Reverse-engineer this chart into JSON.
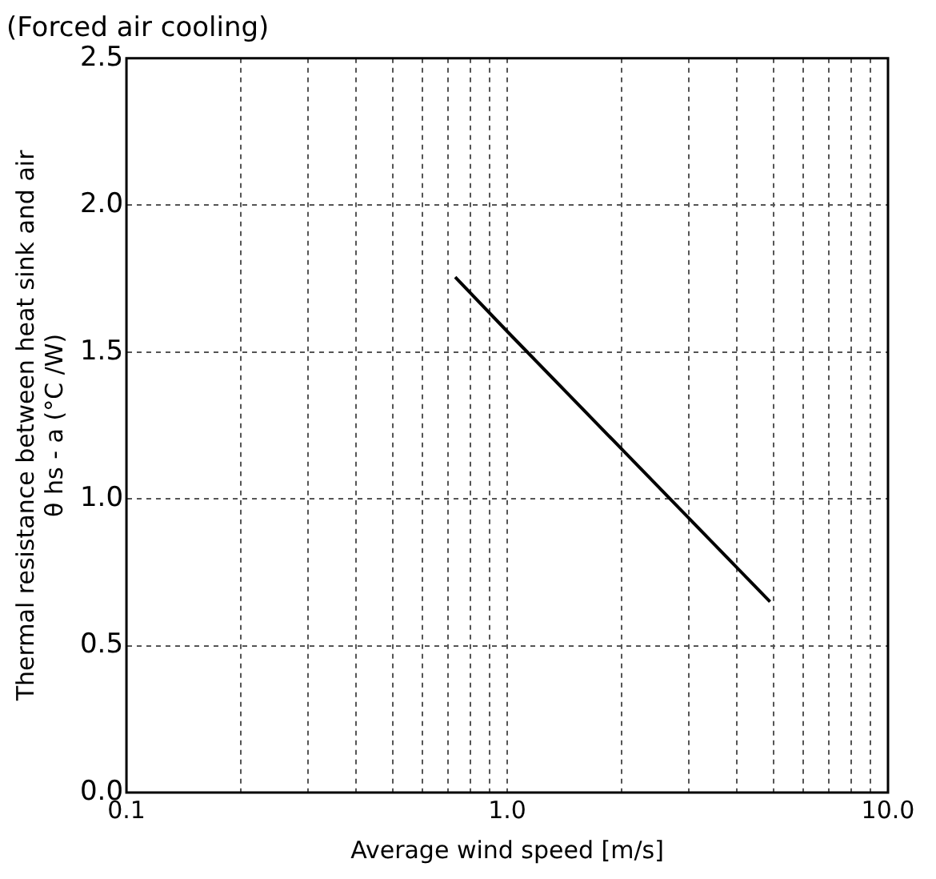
{
  "chart_data": {
    "type": "line",
    "title": "(Forced air cooling)",
    "xlabel": "Average wind speed [m/s]",
    "ylabel": "Thermal resistance between heat sink and air\nθ hs - a (°C /W)",
    "x": [
      0.73,
      1.0,
      4.9
    ],
    "series": [
      {
        "color": "#000000",
        "values": [
          1.755,
          1.57,
          0.65
        ]
      }
    ],
    "log": "x",
    "xlim": [
      0.1,
      10
    ],
    "xticks": [
      {
        "value": 0.1,
        "label": "0.1"
      },
      {
        "value": 0.2,
        "label": null
      },
      {
        "value": 0.3,
        "label": null
      },
      {
        "value": 0.4,
        "label": null
      },
      {
        "value": 0.5,
        "label": null
      },
      {
        "value": 0.6,
        "label": null
      },
      {
        "value": 0.7,
        "label": null
      },
      {
        "value": 0.8,
        "label": null
      },
      {
        "value": 0.9,
        "label": null
      },
      {
        "value": 1,
        "label": "1.0"
      },
      {
        "value": 2,
        "label": null
      },
      {
        "value": 3,
        "label": null
      },
      {
        "value": 4,
        "label": null
      },
      {
        "value": 5,
        "label": null
      },
      {
        "value": 6,
        "label": null
      },
      {
        "value": 7,
        "label": null
      },
      {
        "value": 8,
        "label": null
      },
      {
        "value": 9,
        "label": null
      },
      {
        "value": 10,
        "label": "10.0"
      }
    ],
    "ylim": [
      0,
      2.5
    ],
    "yticks": [
      {
        "value": 0,
        "label": "0.0"
      },
      {
        "value": 0.5,
        "label": "0.5"
      },
      {
        "value": 1,
        "label": "1.0"
      },
      {
        "value": 1.5,
        "label": "1.5"
      },
      {
        "value": 2,
        "label": "2.0"
      },
      {
        "value": 2.5,
        "label": "2.5"
      }
    ],
    "grid": true,
    "legend": false,
    "marker": "none",
    "line_style": "solid"
  }
}
